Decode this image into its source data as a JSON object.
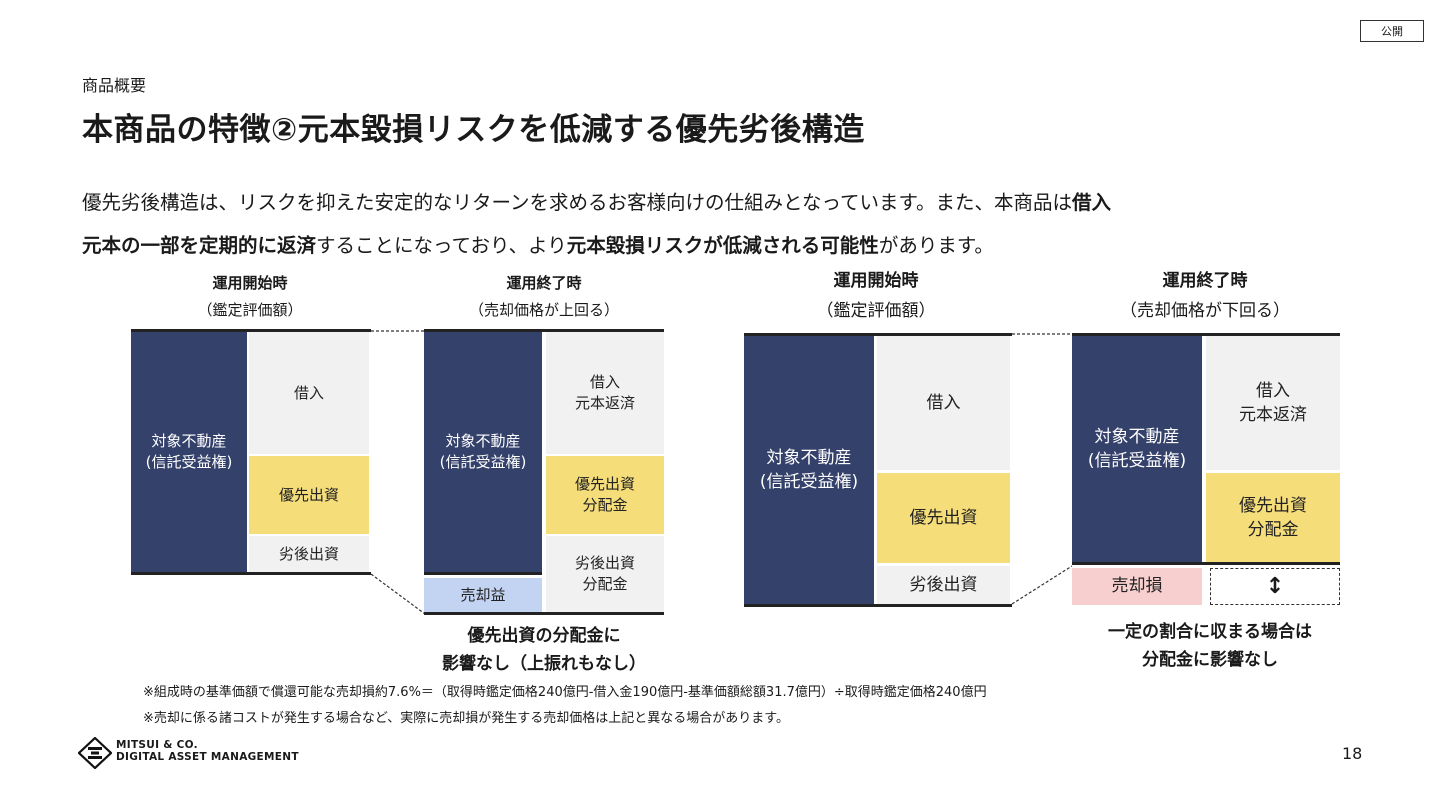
{
  "badge": "公開",
  "section": "商品概要",
  "title": "本商品の特徴②元本毀損リスクを低減する優先劣後構造",
  "lead": {
    "line1_a": "優先劣後構造は、リスクを抑えた安定的なリターンを求めるお客様向けの仕組みとなっています。また、本商品は",
    "line1_b": "借入",
    "line2_a": "元本の一部を定期的に返済",
    "line2_b": "することになっており、より",
    "line2_c": "元本毀損リスクが低減される可能性",
    "line2_d": "があります。"
  },
  "left_diagram": {
    "start_head": "運用開始時",
    "start_sub": "（鑑定評価額）",
    "end_head": "運用終了時",
    "end_sub": "（売却価格が上回る）",
    "asset": "対象不動産\n(信託受益権)",
    "borrow": "借入",
    "senior": "優先出資",
    "junior": "劣後出資",
    "asset2": "対象不動産\n(信託受益権)",
    "repay": "借入\n元本返済",
    "senior_dist": "優先出資\n分配金",
    "junior_dist": "劣後出資\n分配金",
    "gain": "売却益",
    "caption": "優先出資の分配金に\n影響なし（上振れもなし）"
  },
  "right_diagram": {
    "start_head": "運用開始時",
    "start_sub": "（鑑定評価額）",
    "end_head": "運用終了時",
    "end_sub": "（売却価格が下回る）",
    "asset": "対象不動産\n(信託受益権)",
    "borrow": "借入",
    "senior": "優先出資",
    "junior": "劣後出資",
    "asset2": "対象不動産\n(信託受益権)",
    "repay": "借入\n元本返済",
    "senior_dist": "優先出資\n分配金",
    "loss": "売却損",
    "arrow": "↕",
    "caption": "一定の割合に収まる場合は\n分配金に影響なし"
  },
  "notes": [
    "※組成時の基準価額で償還可能な売却損約7.6%＝（取得時鑑定価格240億円-借入金190億円-基準価額総額31.7億円）÷取得時鑑定価格240億円",
    "※売却に係る諸コストが発生する場合など、実際に売却損が発生する売却価格は上記と異なる場合があります。"
  ],
  "logo": {
    "line1": "MITSUI & CO.",
    "line2": "DIGITAL ASSET MANAGEMENT"
  },
  "page_number": "18"
}
